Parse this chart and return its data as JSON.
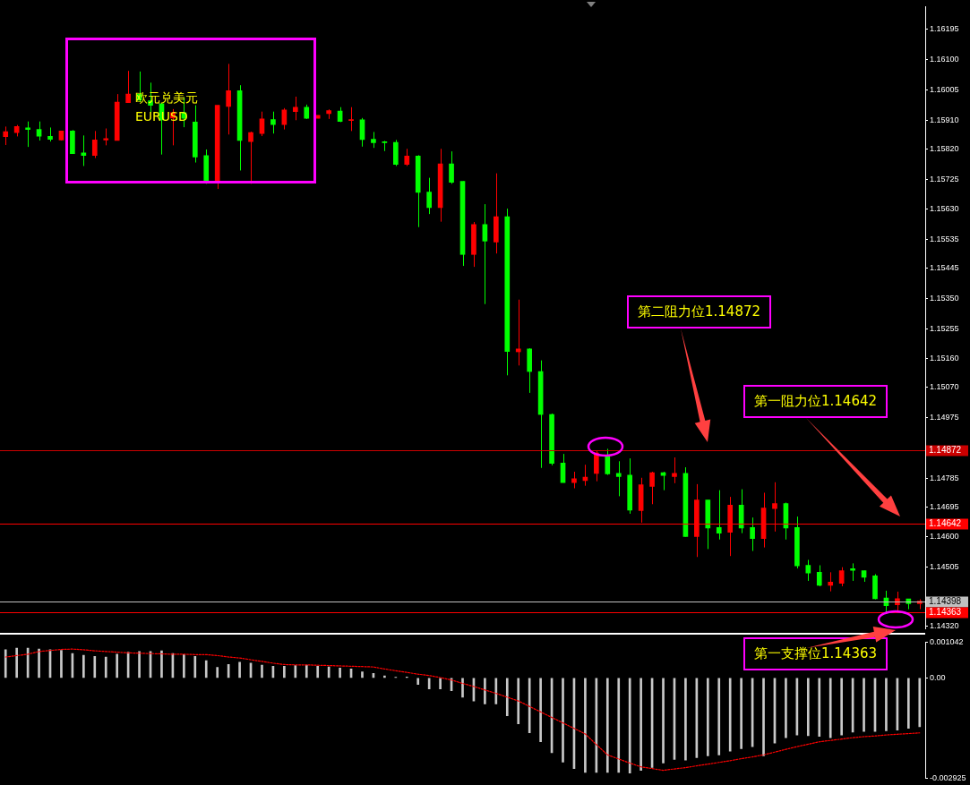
{
  "chart_data": [
    {
      "type": "candlestick",
      "title": "欧元兑美元",
      "subtitle": "EURUSD",
      "tick_labels": "y",
      "categories": [
        null,
        null,
        null,
        null,
        null,
        null,
        null,
        null,
        null,
        null,
        null,
        null,
        null,
        null,
        null,
        null,
        null,
        null,
        null,
        null,
        null,
        null,
        null,
        null,
        null,
        null,
        null,
        null,
        null,
        null,
        null,
        null,
        null,
        null,
        null,
        null,
        null,
        null,
        null,
        null,
        null,
        null,
        null,
        null,
        null,
        null,
        null,
        null,
        null,
        null,
        null,
        null,
        null,
        null,
        null,
        null,
        null,
        null,
        null,
        null,
        null,
        null,
        null,
        null,
        null,
        null,
        null,
        null,
        null,
        null,
        null,
        null,
        null,
        null,
        null,
        null,
        null,
        null,
        null,
        null,
        null,
        null,
        null
      ],
      "ohlc": [
        [
          1.15858,
          1.1589,
          1.15832,
          1.15874
        ],
        [
          1.15871,
          1.15895,
          1.15859,
          1.1589
        ],
        [
          1.15886,
          1.15906,
          1.15826,
          1.15881
        ],
        [
          1.15881,
          1.15906,
          1.15846,
          1.1586
        ],
        [
          1.15859,
          1.15887,
          1.15843,
          1.1585
        ],
        [
          1.15848,
          1.15876,
          1.15846,
          1.15876
        ],
        [
          1.15876,
          1.15879,
          1.15804,
          1.15805
        ],
        [
          1.15807,
          1.15862,
          1.15766,
          1.15799
        ],
        [
          1.15799,
          1.15876,
          1.15791,
          1.15848
        ],
        [
          1.15848,
          1.15884,
          1.15831,
          1.15852
        ],
        [
          1.15846,
          1.15992,
          1.15846,
          1.15967
        ],
        [
          1.15965,
          1.16065,
          1.15965,
          1.15992
        ],
        [
          1.15992,
          1.16063,
          1.15967,
          1.15973
        ],
        [
          1.15971,
          1.16028,
          1.15934,
          1.15957
        ],
        [
          1.15962,
          1.15962,
          1.15802,
          1.15911
        ],
        [
          1.15917,
          1.15945,
          1.15831,
          1.15934
        ],
        [
          1.15934,
          1.15981,
          1.15888,
          1.15916
        ],
        [
          1.15904,
          1.15957,
          1.15777,
          1.15794
        ],
        [
          1.15799,
          1.15818,
          1.1571,
          1.15715
        ],
        [
          1.15719,
          1.15957,
          1.15694,
          1.15957
        ],
        [
          1.15953,
          1.16087,
          1.15865,
          1.16003
        ],
        [
          1.16003,
          1.1602,
          1.15752,
          1.15846
        ],
        [
          1.15843,
          1.15874,
          1.1571,
          1.15871
        ],
        [
          1.15868,
          1.15937,
          1.1586,
          1.15914
        ],
        [
          1.15912,
          1.15937,
          1.15868,
          1.15896
        ],
        [
          1.15896,
          1.15948,
          1.15881,
          1.15942
        ],
        [
          1.15937,
          1.15984,
          1.1591,
          1.15951
        ],
        [
          1.15951,
          1.15959,
          1.15914,
          1.15916
        ],
        [
          1.15916,
          1.15925,
          1.15916,
          1.15925
        ],
        [
          1.15931,
          1.15944,
          1.15914,
          1.1594
        ],
        [
          1.15939,
          1.15951,
          1.15904,
          1.15906
        ],
        [
          1.15909,
          1.15951,
          1.15876,
          1.15912
        ],
        [
          1.15911,
          1.15917,
          1.15827,
          1.15849
        ],
        [
          1.1585,
          1.15873,
          1.15823,
          1.15839
        ],
        [
          1.15842,
          1.15845,
          1.15813,
          1.15839
        ],
        [
          1.1584,
          1.15848,
          1.15766,
          1.15771
        ],
        [
          1.15771,
          1.1582,
          1.15766,
          1.15797
        ],
        [
          1.15797,
          1.158,
          1.15574,
          1.15683
        ],
        [
          1.15684,
          1.15729,
          1.15615,
          1.15635
        ],
        [
          1.15635,
          1.1582,
          1.15591,
          1.15773
        ],
        [
          1.15773,
          1.15812,
          1.1571,
          1.15715
        ],
        [
          1.15718,
          1.15718,
          1.15452,
          1.15488
        ],
        [
          1.15488,
          1.1559,
          1.15449,
          1.15582
        ],
        [
          1.15582,
          1.15646,
          1.15332,
          1.1553
        ],
        [
          1.15527,
          1.15743,
          1.15491,
          1.15607
        ],
        [
          1.15607,
          1.15632,
          1.15108,
          1.15183
        ],
        [
          1.15182,
          1.15346,
          1.15139,
          1.15191
        ],
        [
          1.15191,
          1.15193,
          1.15053,
          1.1512
        ],
        [
          1.1512,
          1.15155,
          1.14817,
          1.14985
        ],
        [
          1.14985,
          1.14988,
          1.14825,
          1.14831
        ],
        [
          1.14832,
          1.14861,
          1.14771,
          1.14771
        ],
        [
          1.14771,
          1.14805,
          1.14753,
          1.14783
        ],
        [
          1.14777,
          1.14827,
          1.14761,
          1.14788
        ],
        [
          1.148,
          1.14871,
          1.14775,
          1.14864
        ],
        [
          1.14855,
          1.14877,
          1.14795,
          1.14798
        ],
        [
          1.148,
          1.14838,
          1.14728,
          1.1479
        ],
        [
          1.14794,
          1.14847,
          1.14673,
          1.14684
        ],
        [
          1.14683,
          1.14786,
          1.14645,
          1.14764
        ],
        [
          1.14759,
          1.14805,
          1.14703,
          1.14802
        ],
        [
          1.14802,
          1.14805,
          1.14747,
          1.14793
        ],
        [
          1.1479,
          1.1485,
          1.14769,
          1.148
        ],
        [
          1.148,
          1.14819,
          1.14601,
          1.14601
        ],
        [
          1.14601,
          1.14766,
          1.14537,
          1.14716
        ],
        [
          1.14716,
          1.14716,
          1.14562,
          1.14628
        ],
        [
          1.1463,
          1.14747,
          1.14592,
          1.14612
        ],
        [
          1.14615,
          1.14726,
          1.1454,
          1.147
        ],
        [
          1.147,
          1.1475,
          1.14612,
          1.14628
        ],
        [
          1.1463,
          1.14661,
          1.14556,
          1.14595
        ],
        [
          1.14595,
          1.14739,
          1.14567,
          1.14691
        ],
        [
          1.14689,
          1.14772,
          1.14617,
          1.14705
        ],
        [
          1.14705,
          1.14708,
          1.14592,
          1.14628
        ],
        [
          1.1463,
          1.14664,
          1.14501,
          1.14509
        ],
        [
          1.14511,
          1.14528,
          1.14462,
          1.14487
        ],
        [
          1.14489,
          1.14511,
          1.14445,
          1.14448
        ],
        [
          1.14448,
          1.14489,
          1.14429,
          1.14458
        ],
        [
          1.14454,
          1.14505,
          1.14445,
          1.14494
        ],
        [
          1.145,
          1.14517,
          1.14462,
          1.14495
        ],
        [
          1.14494,
          1.14494,
          1.14459,
          1.14473
        ],
        [
          1.14478,
          1.14483,
          1.14404,
          1.14406
        ],
        [
          1.14408,
          1.14431,
          1.14362,
          1.14384
        ],
        [
          1.14387,
          1.14428,
          1.14362,
          1.14406
        ],
        [
          1.14405,
          1.14405,
          1.14373,
          1.1439
        ],
        [
          1.1439,
          1.14404,
          1.14373,
          1.14398
        ]
      ],
      "colors": [
        "#ff0000",
        "#ff0000",
        "#00ff00",
        "#00ff00",
        "#00ff00",
        "#ff0000",
        "#00ff00",
        "#00ff00",
        "#ff0000",
        "#ff0000",
        "#ff0000",
        "#ff0000",
        "#00ff00",
        "#00ff00",
        "#00ff00",
        "#ff0000",
        "#00ff00",
        "#00ff00",
        "#00ff00",
        "#ff0000",
        "#ff0000",
        "#00ff00",
        "#ff0000",
        "#ff0000",
        "#00ff00",
        "#ff0000",
        "#ff0000",
        "#00ff00",
        "#ff0000",
        "#ff0000",
        "#00ff00",
        "#ff0000",
        "#00ff00",
        "#00ff00",
        "#00ff00",
        "#00ff00",
        "#ff0000",
        "#00ff00",
        "#00ff00",
        "#ff0000",
        "#00ff00",
        "#00ff00",
        "#ff0000",
        "#00ff00",
        "#ff0000",
        "#00ff00",
        "#ff0000",
        "#00ff00",
        "#00ff00",
        "#00ff00",
        "#00ff00",
        "#ff0000",
        "#ff0000",
        "#ff0000",
        "#00ff00",
        "#00ff00",
        "#00ff00",
        "#ff0000",
        "#ff0000",
        "#00ff00",
        "#ff0000",
        "#00ff00",
        "#ff0000",
        "#00ff00",
        "#00ff00",
        "#ff0000",
        "#00ff00",
        "#00ff00",
        "#ff0000",
        "#ff0000",
        "#00ff00",
        "#00ff00",
        "#00ff00",
        "#00ff00",
        "#ff0000",
        "#ff0000",
        "#00ff00",
        "#00ff00",
        "#00ff00",
        "#00ff00",
        "#ff0000",
        "#00ff00",
        "#ff0000"
      ],
      "ylim": [
        1.14311,
        1.16267
      ],
      "yticks": [
        1.16195,
        {
          "value": 1.161,
          "label": "1.16100"
        },
        1.16005,
        {
          "value": 1.1591,
          "label": "1.15910"
        },
        {
          "value": 1.1582,
          "label": "1.15820"
        },
        1.15725,
        {
          "value": 1.1563,
          "label": "1.15630"
        },
        1.15535,
        1.15445,
        {
          "value": 1.1535,
          "label": "1.15350"
        },
        1.15255,
        {
          "value": 1.1516,
          "label": "1.15160"
        },
        {
          "value": 1.1507,
          "label": "1.15070"
        },
        1.14975,
        1.14785,
        1.14695,
        {
          "value": 1.146,
          "label": "1.14600"
        },
        1.14505,
        {
          "value": 1.1432,
          "label": "1.14320"
        }
      ],
      "ref_lines": [
        {
          "axis": "y",
          "value": 1.14872,
          "label": "1.14872",
          "color": "#cc0000"
        },
        {
          "axis": "y",
          "value": 1.14642,
          "label": "1.14642",
          "color": "#ff0000"
        },
        {
          "axis": "y",
          "value": 1.14398,
          "label": "1.14398",
          "color": "#c0c0c0"
        },
        {
          "axis": "y",
          "value": 1.14363,
          "label": "1.14363",
          "color": "#ff0000"
        }
      ],
      "annotations": [
        "第二阻力位1.14872",
        "第一阻力位1.14642",
        "第一支撑位1.14363"
      ]
    },
    {
      "type": "bar",
      "tick_labels": "y",
      "categories": [
        null,
        null,
        null,
        null,
        null,
        null,
        null,
        null,
        null,
        null,
        null,
        null,
        null,
        null,
        null,
        null,
        null,
        null,
        null,
        null,
        null,
        null,
        null,
        null,
        null,
        null,
        null,
        null,
        null,
        null,
        null,
        null,
        null,
        null,
        null,
        null,
        null,
        null,
        null,
        null,
        null,
        null,
        null,
        null,
        null,
        null,
        null,
        null,
        null,
        null,
        null,
        null,
        null,
        null,
        null,
        null,
        null,
        null,
        null,
        null,
        null,
        null,
        null,
        null,
        null,
        null,
        null,
        null,
        null,
        null,
        null,
        null,
        null,
        null,
        null,
        null,
        null,
        null,
        null,
        null,
        null,
        null,
        null
      ],
      "ylim": [
        -0.002925,
        0.001042
      ],
      "yticks": [
        0.001042,
        {
          "value": 0,
          "label": "0.00"
        },
        -0.002925
      ],
      "series": [
        {
          "type": "bar",
          "color": "#c8c8c8",
          "values": [
            0.00082,
            0.00087,
            0.00087,
            0.00084,
            0.00082,
            0.0008,
            0.00071,
            0.00066,
            0.00063,
            0.00061,
            0.00069,
            0.00075,
            0.00077,
            0.00077,
            0.00079,
            0.00071,
            0.00068,
            0.00063,
            0.0005,
            0.00031,
            0.00039,
            0.00046,
            0.00043,
            0.00037,
            0.00034,
            0.00034,
            0.00036,
            0.00037,
            0.00034,
            0.00032,
            0.00029,
            0.00026,
            0.00018,
            0.00013,
            6e-05,
            2e-05,
            3e-05,
            -0.00019,
            -0.00032,
            -0.00032,
            -0.00037,
            -0.00056,
            -0.00067,
            -0.00076,
            -0.00076,
            -0.0011,
            -0.00134,
            -0.0016,
            -0.00186,
            -0.00218,
            -0.00245,
            -0.00264,
            -0.00275,
            -0.00275,
            -0.00275,
            -0.00275,
            -0.00277,
            -0.00269,
            -0.00261,
            -0.00248,
            -0.00237,
            -0.00239,
            -0.00232,
            -0.00227,
            -0.00224,
            -0.00213,
            -0.00206,
            -0.002,
            -0.00227,
            -0.0019,
            -0.00174,
            -0.00166,
            -0.00168,
            -0.0017,
            -0.00174,
            -0.00166,
            -0.00158,
            -0.00156,
            -0.00156,
            -0.00154,
            -0.00152,
            -0.00147,
            -0.00142
          ]
        },
        {
          "type": "line",
          "color": "#ff0000",
          "line_style": "dotted",
          "values": [
            0.00061,
            0.00065,
            0.00069,
            0.00077,
            0.0008,
            0.00083,
            0.00084,
            0.00082,
            0.00079,
            0.00077,
            0.00075,
            0.00073,
            0.00072,
            0.00071,
            0.0007,
            0.00069,
            0.00069,
            0.00068,
            0.00068,
            0.00065,
            0.00061,
            0.00058,
            0.00053,
            0.00048,
            0.00043,
            0.00039,
            0.00038,
            0.00038,
            0.00037,
            0.00036,
            0.00035,
            0.00034,
            0.00033,
            0.00032,
            0.00026,
            0.00021,
            0.00016,
            0.00011,
            7e-05,
            1e-05,
            -6e-05,
            -0.00016,
            -0.00025,
            -0.00035,
            -0.00045,
            -0.00056,
            -0.00067,
            -0.00083,
            -0.00099,
            -0.00115,
            -0.00131,
            -0.00147,
            -0.00163,
            -0.00194,
            -0.00224,
            -0.00236,
            -0.00248,
            -0.00259,
            -0.00264,
            -0.00269,
            -0.00265,
            -0.00261,
            -0.00256,
            -0.00251,
            -0.00246,
            -0.00241,
            -0.00235,
            -0.0023,
            -0.00224,
            -0.00216,
            -0.00208,
            -0.002,
            -0.00193,
            -0.00186,
            -0.00182,
            -0.00178,
            -0.00174,
            -0.00171,
            -0.00169,
            -0.00166,
            -0.00164,
            -0.00162,
            -0.0016
          ]
        }
      ]
    }
  ]
}
